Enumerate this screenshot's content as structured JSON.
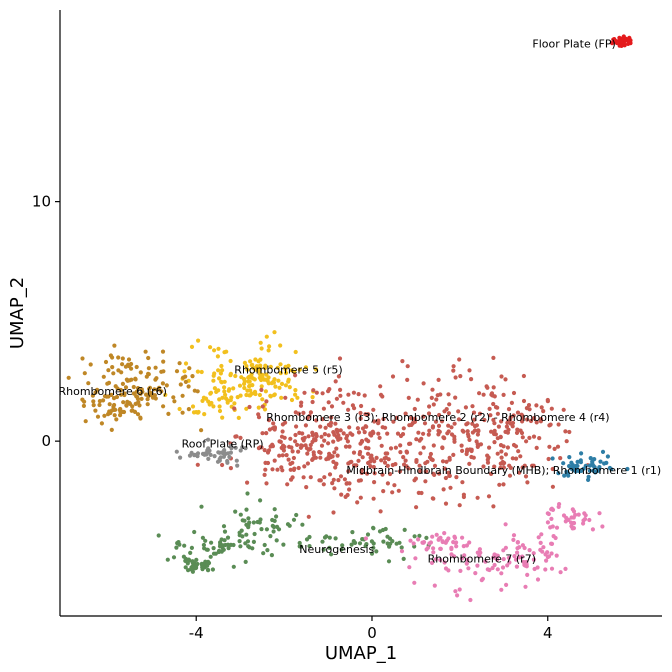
{
  "chart_data": {
    "type": "scatter",
    "xlabel": "UMAP_1",
    "ylabel": "UMAP_2",
    "xlim": [
      -7.1,
      6.6
    ],
    "ylim": [
      -7.3,
      18.0
    ],
    "x_ticks": [
      -4,
      0,
      4
    ],
    "y_ticks": [
      0,
      10
    ],
    "x_tick_labels": [
      "-4",
      "0",
      "4"
    ],
    "y_tick_labels": [
      "0",
      "10"
    ],
    "grid": false,
    "legend": "none",
    "clusters": [
      {
        "label": "Floor Plate (FP)",
        "color": "#e41a1c",
        "center": [
          5.7,
          16.7
        ],
        "label_pos": [
          4.6,
          16.6
        ]
      },
      {
        "label": "Rhombomere 5 (r5)",
        "color": "#f2c01e",
        "center": [
          -2.9,
          2.4
        ],
        "label_pos": [
          -1.9,
          3.0
        ]
      },
      {
        "label": "Rhombomere 6 (r6)",
        "color": "#bf8726",
        "center": [
          -5.3,
          2.4
        ],
        "label_pos": [
          -5.9,
          2.1
        ]
      },
      {
        "label": "Rhombomere 3 (r3); Rhombomere 2 (r2) - Rhombomere 4 (r4)",
        "color": "#c65b52",
        "center": [
          1.3,
          1.0
        ],
        "label_pos": [
          1.5,
          1.0
        ]
      },
      {
        "label": "Roof Plate (RP)",
        "color": "#8c8c8c",
        "center": [
          -3.7,
          -0.4
        ],
        "label_pos": [
          -3.4,
          -0.1
        ]
      },
      {
        "label": "Midbrain-Hindbrain Boundary (MHB); Rhombomere 1 (r1)",
        "color": "#2e7ea6",
        "center": [
          5.1,
          -1.1
        ],
        "label_pos": [
          3.0,
          -1.2
        ]
      },
      {
        "label": "Neurogenesis",
        "color": "#5a8c55",
        "center": [
          -1.0,
          -4.2
        ],
        "label_pos": [
          -0.8,
          -4.5
        ]
      },
      {
        "label": "Rhombomere 7 (r7)",
        "color": "#e87db4",
        "center": [
          2.6,
          -5.1
        ],
        "label_pos": [
          2.5,
          -4.9
        ]
      }
    ]
  }
}
